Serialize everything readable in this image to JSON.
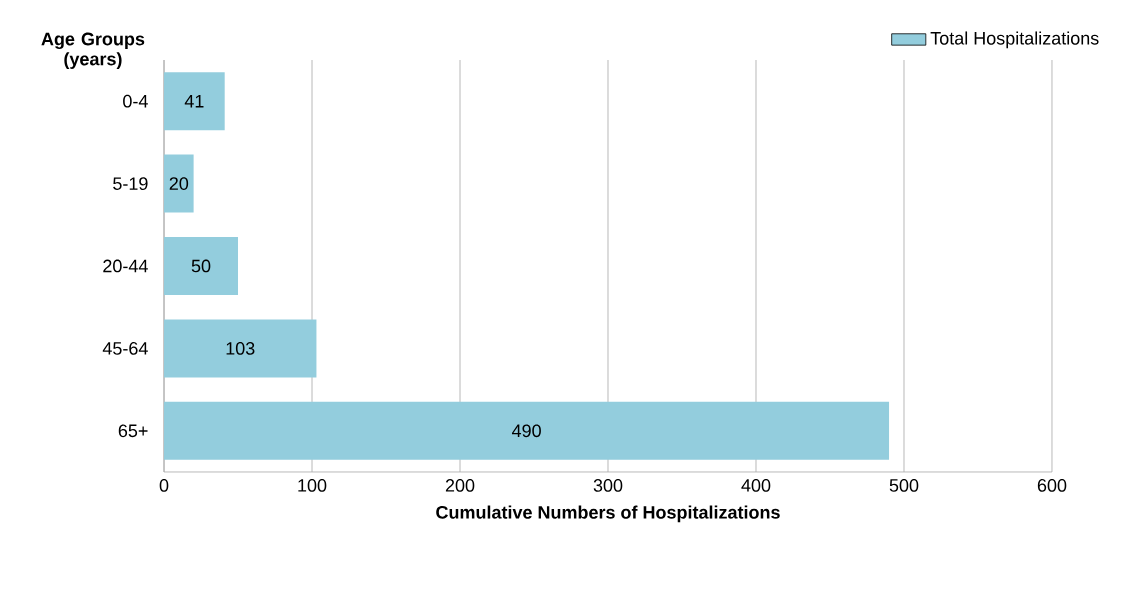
{
  "chart_data": {
    "type": "bar",
    "orientation": "horizontal",
    "ylabel": "Age Groups (years)",
    "xlabel": "Cumulative Numbers of Hospitalizations",
    "categories": [
      "0-4",
      "5-19",
      "20-44",
      "45-64",
      "65+"
    ],
    "series": [
      {
        "name": "Total Hospitalizations",
        "color": "#93cddd",
        "values": [
          41,
          20,
          50,
          103,
          490
        ]
      }
    ],
    "xlim": [
      0,
      600
    ],
    "xticks": [
      0,
      100,
      200,
      300,
      400,
      500,
      600
    ],
    "grid": "x",
    "legend": "top right",
    "data_labels": true
  }
}
